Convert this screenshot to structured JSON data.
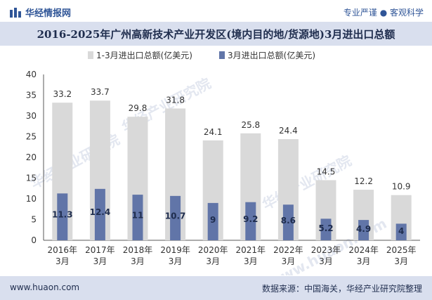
{
  "header": {
    "logo_text": "华经情报网",
    "slogan": "专业严谨 ● 客观科学"
  },
  "title": "2016-2025年广州高新技术产业开发区(境内目的地/货源地)3月进出口总额",
  "watermarks": [
    "华经产业研究院",
    "www.huaon.com"
  ],
  "footer": {
    "url": "www.huaon.com",
    "source": "数据来源：中国海关，华经产业研究院整理"
  },
  "colors": {
    "series1": "#d9d9d9",
    "series2": "#6175a8",
    "brand": "#2f5597",
    "band": "#d9dfee"
  },
  "chart_data": {
    "type": "bar",
    "categories": [
      "2016年\n3月",
      "2017年\n3月",
      "2018年\n3月",
      "2019年\n3月",
      "2020年\n3月",
      "2021年\n3月",
      "2022年\n3月",
      "2023年\n3月",
      "2024年\n3月",
      "2025年\n3月"
    ],
    "series": [
      {
        "name": "1-3月进出口总额(亿美元)",
        "values": [
          33.2,
          33.7,
          29.8,
          31.8,
          24.1,
          25.8,
          24.4,
          14.5,
          12.2,
          10.9
        ],
        "labels": [
          "33.2",
          "33.7",
          "29.8",
          "31.8",
          "24.1",
          "25.8",
          "24.4",
          "14.5",
          "12.2",
          "10.9"
        ]
      },
      {
        "name": "3月进出口总额(亿美元)",
        "values": [
          11.3,
          12.4,
          11,
          10.7,
          9,
          9.2,
          8.6,
          5.2,
          4.9,
          4
        ],
        "labels": [
          "11.3",
          "12.4",
          "11",
          "10.7",
          "9",
          "9.2",
          "8.6",
          "5.2",
          "4.9",
          "4"
        ]
      }
    ],
    "yticks": [
      "0",
      "5",
      "10",
      "15",
      "20",
      "25",
      "30",
      "35",
      "40"
    ],
    "ylim": [
      0,
      40
    ],
    "grid": false,
    "legend": "top-left",
    "overlap": true
  }
}
